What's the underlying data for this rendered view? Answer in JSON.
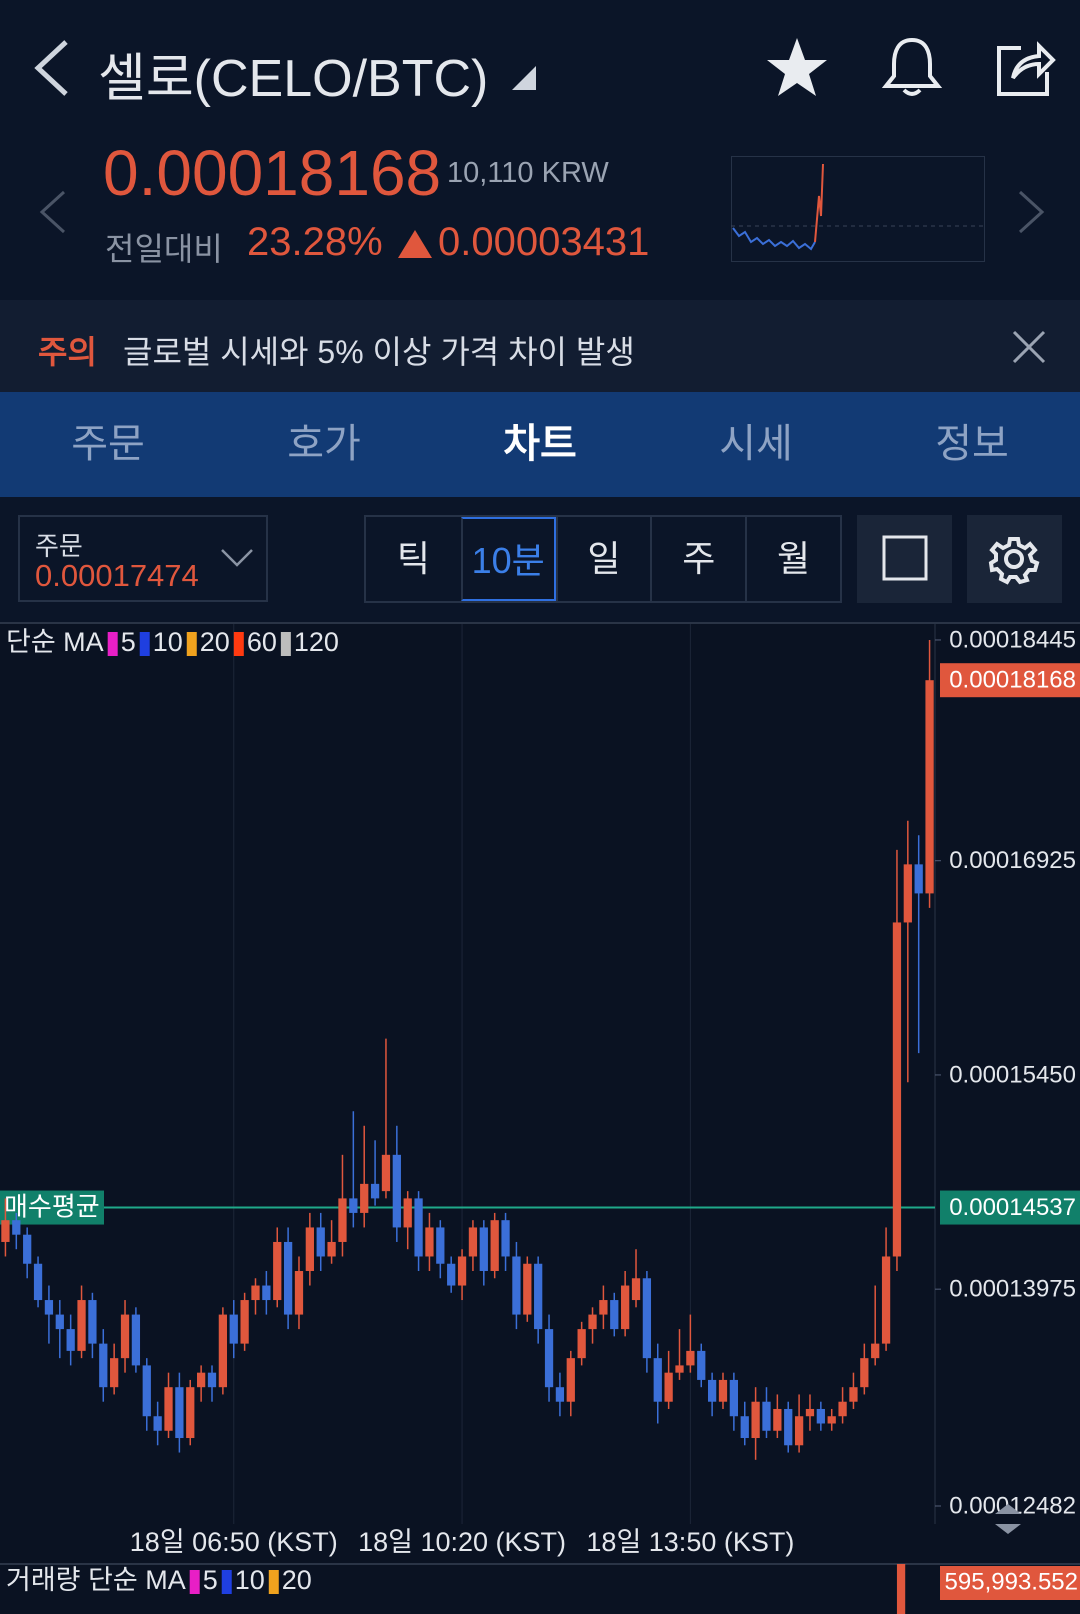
{
  "header": {
    "title": "셀로(CELO/BTC)",
    "price": "0.00018168",
    "krw": "10,110 KRW",
    "change_label": "전일대비",
    "change_percent": "23.28%",
    "change_amount": "0.00003431"
  },
  "notice": {
    "label": "주의",
    "text": "글로벌 시세와 5% 이상 가격 차이 발생"
  },
  "tabs": [
    "주문",
    "호가",
    "차트",
    "시세",
    "정보"
  ],
  "active_tab": 2,
  "order": {
    "label": "주문",
    "value": "0.00017474"
  },
  "intervals": [
    "틱",
    "10분",
    "일",
    "주",
    "월"
  ],
  "active_interval": 1,
  "chart_data": {
    "type": "candlestick",
    "legend_label": "단순 MA",
    "ma_periods": [
      5,
      10,
      20,
      60,
      120
    ],
    "ma_colors": [
      "#e81fc6",
      "#1f3fe0",
      "#f0a21e",
      "#ff3a10",
      "#bdbdbd"
    ],
    "up_color": "#e0573d",
    "down_color": "#3b6fd8",
    "ylim": [
      0.00012358,
      0.00018555
    ],
    "yticks": [
      0.00018445,
      0.00016925,
      {
        "value": 0.0001545,
        "label": "0.00015450"
      },
      0.00013975,
      0.00012482
    ],
    "current_price": 0.00018168,
    "avg_label": "매수평균",
    "avg_price": 0.00014537,
    "categories": [
      null,
      null,
      null,
      null,
      null,
      null,
      null,
      null,
      null,
      null,
      null,
      null,
      null,
      null,
      null,
      null,
      null,
      null,
      null,
      null,
      null,
      "18일 06:50 (KST)",
      null,
      null,
      null,
      null,
      null,
      null,
      null,
      null,
      null,
      null,
      null,
      null,
      null,
      null,
      null,
      null,
      null,
      null,
      null,
      null,
      "18일 10:20 (KST)",
      null,
      null,
      null,
      null,
      null,
      null,
      null,
      null,
      null,
      null,
      null,
      null,
      null,
      null,
      null,
      null,
      null,
      null,
      null,
      null,
      "18일 13:50 (KST)",
      null,
      null,
      null,
      null,
      null,
      null,
      null,
      null,
      null,
      null,
      null,
      null,
      null,
      null,
      null,
      null,
      null,
      null,
      null,
      null,
      null,
      null
    ],
    "candles": [
      [
        0.000143,
        0.000146,
        0.000142,
        0.0001445
      ],
      [
        0.0001445,
        0.000145,
        0.0001425,
        0.0001435
      ],
      [
        0.0001435,
        0.000144,
        0.0001405,
        0.0001415
      ],
      [
        0.0001415,
        0.000142,
        0.0001385,
        0.000139
      ],
      [
        0.000139,
        0.00014,
        0.000136,
        0.000138
      ],
      [
        0.000138,
        0.000139,
        0.000135,
        0.000137
      ],
      [
        0.000137,
        0.000138,
        0.0001345,
        0.0001355
      ],
      [
        0.0001355,
        0.00014,
        0.000135,
        0.000139
      ],
      [
        0.000139,
        0.0001395,
        0.000135,
        0.000136
      ],
      [
        0.000136,
        0.000137,
        0.000132,
        0.000133
      ],
      [
        0.000133,
        0.000136,
        0.0001325,
        0.000135
      ],
      [
        0.000135,
        0.000139,
        0.000134,
        0.000138
      ],
      [
        0.000138,
        0.0001385,
        0.000134,
        0.0001345
      ],
      [
        0.0001345,
        0.000135,
        0.00013,
        0.000131
      ],
      [
        0.000131,
        0.000132,
        0.000129,
        0.00013
      ],
      [
        0.00013,
        0.000134,
        0.0001295,
        0.000133
      ],
      [
        0.000133,
        0.000134,
        0.0001285,
        0.0001295
      ],
      [
        0.0001295,
        0.0001335,
        0.000129,
        0.000133
      ],
      [
        0.000133,
        0.0001345,
        0.000132,
        0.000134
      ],
      [
        0.000134,
        0.0001345,
        0.000132,
        0.000133
      ],
      [
        0.000133,
        0.0001385,
        0.0001325,
        0.000138
      ],
      [
        0.000138,
        0.000139,
        0.000135,
        0.000136
      ],
      [
        0.000136,
        0.0001395,
        0.0001355,
        0.000139
      ],
      [
        0.000139,
        0.0001405,
        0.000138,
        0.00014
      ],
      [
        0.00014,
        0.000141,
        0.000138,
        0.000139
      ],
      [
        0.000139,
        0.000144,
        0.0001385,
        0.000143
      ],
      [
        0.000143,
        0.000144,
        0.000137,
        0.000138
      ],
      [
        0.000138,
        0.000142,
        0.000137,
        0.000141
      ],
      [
        0.000141,
        0.000145,
        0.00014,
        0.000144
      ],
      [
        0.000144,
        0.000145,
        0.000141,
        0.000142
      ],
      [
        0.000142,
        0.0001445,
        0.0001415,
        0.000143
      ],
      [
        0.000143,
        0.000149,
        0.000142,
        0.000146
      ],
      [
        0.000146,
        0.000152,
        0.000144,
        0.000145
      ],
      [
        0.000145,
        0.000151,
        0.000144,
        0.000147
      ],
      [
        0.000147,
        0.00015,
        0.0001455,
        0.000146
      ],
      [
        0.0001465,
        0.000157,
        0.000146,
        0.000149
      ],
      [
        0.000149,
        0.000151,
        0.000143,
        0.000144
      ],
      [
        0.000144,
        0.0001465,
        0.0001425,
        0.000146
      ],
      [
        0.000146,
        0.0001465,
        0.000141,
        0.000142
      ],
      [
        0.000142,
        0.000145,
        0.000141,
        0.000144
      ],
      [
        0.000144,
        0.0001445,
        0.0001405,
        0.0001415
      ],
      [
        0.0001415,
        0.000142,
        0.0001395,
        0.00014
      ],
      [
        0.00014,
        0.0001425,
        0.000139,
        0.000142
      ],
      [
        0.000142,
        0.0001445,
        0.000141,
        0.000144
      ],
      [
        0.000144,
        0.0001445,
        0.00014,
        0.000141
      ],
      [
        0.000141,
        0.000145,
        0.0001405,
        0.0001445
      ],
      [
        0.0001445,
        0.000145,
        0.000141,
        0.000142
      ],
      [
        0.000142,
        0.000143,
        0.000137,
        0.000138
      ],
      [
        0.000138,
        0.000142,
        0.0001375,
        0.0001415
      ],
      [
        0.0001415,
        0.000142,
        0.000136,
        0.000137
      ],
      [
        0.000137,
        0.000138,
        0.000132,
        0.000133
      ],
      [
        0.000133,
        0.000134,
        0.000131,
        0.000132
      ],
      [
        0.000132,
        0.0001355,
        0.000131,
        0.000135
      ],
      [
        0.000135,
        0.0001375,
        0.0001345,
        0.000137
      ],
      [
        0.000137,
        0.0001385,
        0.000136,
        0.000138
      ],
      [
        0.000138,
        0.00014,
        0.000137,
        0.000139
      ],
      [
        0.000139,
        0.0001395,
        0.0001365,
        0.000137
      ],
      [
        0.000137,
        0.000141,
        0.0001365,
        0.00014
      ],
      [
        0.000139,
        0.0001425,
        0.0001385,
        0.0001405
      ],
      [
        0.0001405,
        0.000141,
        0.000134,
        0.000135
      ],
      [
        0.000135,
        0.000136,
        0.0001305,
        0.000132
      ],
      [
        0.000132,
        0.0001355,
        0.0001315,
        0.000134
      ],
      [
        0.000134,
        0.000137,
        0.0001335,
        0.0001345
      ],
      [
        0.0001345,
        0.000138,
        0.000134,
        0.0001355
      ],
      [
        0.0001355,
        0.000136,
        0.000133,
        0.0001335
      ],
      [
        0.0001335,
        0.000134,
        0.000131,
        0.000132
      ],
      [
        0.000132,
        0.000134,
        0.0001315,
        0.0001335
      ],
      [
        0.0001335,
        0.000134,
        0.00013,
        0.000131
      ],
      [
        0.000131,
        0.000132,
        0.000129,
        0.0001295
      ],
      [
        0.0001295,
        0.000133,
        0.000128,
        0.000132
      ],
      [
        0.000132,
        0.000133,
        0.0001295,
        0.00013
      ],
      [
        0.00013,
        0.0001325,
        0.0001295,
        0.0001315
      ],
      [
        0.0001315,
        0.000132,
        0.0001285,
        0.000129
      ],
      [
        0.000129,
        0.0001325,
        0.0001285,
        0.000131
      ],
      [
        0.000131,
        0.0001325,
        0.00013,
        0.0001315
      ],
      [
        0.0001315,
        0.000132,
        0.00013,
        0.0001305
      ],
      [
        0.0001305,
        0.0001315,
        0.00013,
        0.000131
      ],
      [
        0.000131,
        0.000133,
        0.0001305,
        0.000132
      ],
      [
        0.000132,
        0.000134,
        0.0001315,
        0.000133
      ],
      [
        0.000133,
        0.000136,
        0.0001325,
        0.000135
      ],
      [
        0.000135,
        0.00014,
        0.0001345,
        0.000136
      ],
      [
        0.000136,
        0.000144,
        0.0001355,
        0.000142
      ],
      [
        0.000142,
        0.00017,
        0.000141,
        0.000165
      ],
      [
        0.000165,
        0.000172,
        0.000154,
        0.000169
      ],
      [
        0.000169,
        0.000171,
        0.000156,
        0.000167
      ],
      [
        0.000167,
        0.00018445,
        0.000166,
        0.00018168
      ]
    ]
  },
  "volume": {
    "legend_label": "거래량 단순 MA",
    "ma_periods": [
      5,
      10,
      20
    ],
    "value": 595993.552,
    "value_label": "595,993.552"
  }
}
